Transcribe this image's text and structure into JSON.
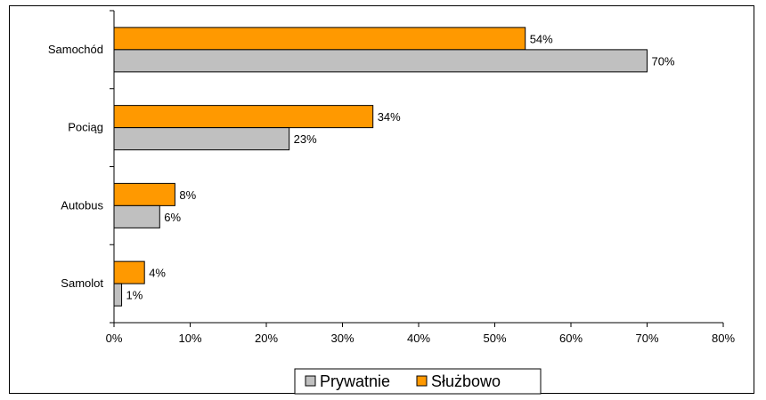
{
  "chart_data": {
    "type": "bar",
    "orientation": "horizontal",
    "categories": [
      "Samochód",
      "Pociąg",
      "Autobus",
      "Samolot"
    ],
    "series": [
      {
        "name": "Służbowo",
        "color": "#ff9900",
        "values": [
          54,
          34,
          8,
          4
        ],
        "labels": [
          "54%",
          "34%",
          "8%",
          "4%"
        ]
      },
      {
        "name": "Prywatnie",
        "color": "#c0c0c0",
        "values": [
          70,
          23,
          6,
          1
        ],
        "labels": [
          "70%",
          "23%",
          "6%",
          "1%"
        ]
      }
    ],
    "xticks": [
      "0%",
      "10%",
      "20%",
      "30%",
      "40%",
      "50%",
      "60%",
      "70%",
      "80%"
    ],
    "xlim": [
      0,
      80
    ],
    "grid": false,
    "legend_position": "bottom"
  },
  "legend": {
    "items": [
      {
        "name": "Prywatnie",
        "color": "#c0c0c0"
      },
      {
        "name": "Służbowo",
        "color": "#ff9900"
      }
    ]
  }
}
